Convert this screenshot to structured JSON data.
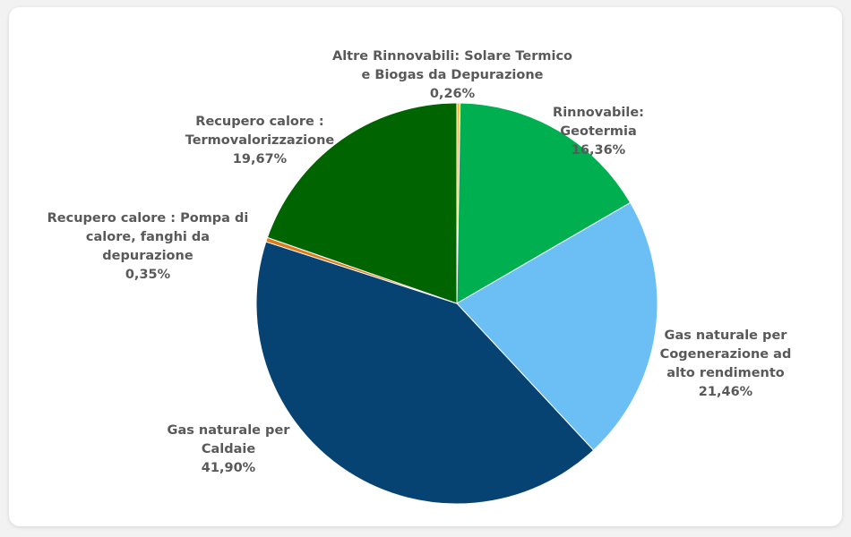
{
  "chart_data": {
    "type": "pie",
    "categories": [
      "Altre Rinnovabili: Solare Termico e Biogas da Depurazione",
      "Rinnovabile: Geotermia",
      "Gas naturale per Cogenerazione ad alto rendimento",
      "Gas naturale per Caldaie",
      "Recupero calore : Pompa di calore, fanghi da depurazione",
      "Recupero calore : Termovalorizzazione"
    ],
    "values": [
      0.26,
      16.36,
      21.46,
      41.9,
      0.35,
      19.67
    ],
    "value_labels": [
      "0,26%",
      "16,36%",
      "21,46%",
      "41,90%",
      "0,35%",
      "19,67%"
    ],
    "colors": [
      "#f2c230",
      "#00b050",
      "#6bbff5",
      "#064372",
      "#e07b1a",
      "#006400"
    ]
  }
}
